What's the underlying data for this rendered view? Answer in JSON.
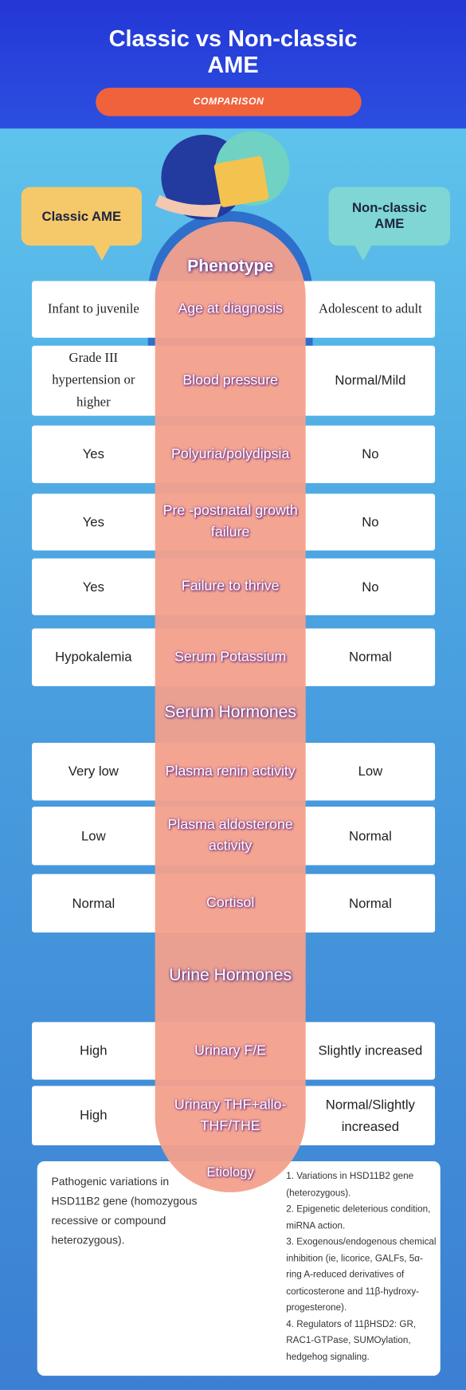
{
  "header": {
    "title": "Classic vs Non-classic AME",
    "badge": "COMPARISON"
  },
  "columns": {
    "classic": "Classic AME",
    "non_classic": "Non-classic AME"
  },
  "sections": [
    {
      "title": "Phenotype",
      "rows": [
        {
          "classic": "Infant to juvenile",
          "feature": "Age at diagnosis",
          "non_classic": "Adolescent to adult"
        },
        {
          "classic": "Grade III hypertension or higher",
          "feature": "Blood pressure",
          "non_classic": "Normal/Mild"
        },
        {
          "classic": "Yes",
          "feature": "Polyuria/polydipsia",
          "non_classic": "No"
        },
        {
          "classic": "Yes",
          "feature": "Pre -postnatal growth failure",
          "non_classic": "No"
        },
        {
          "classic": "Yes",
          "feature": "Failure to thrive",
          "non_classic": "No"
        },
        {
          "classic": "Hypokalemia",
          "feature": "Serum Potassium",
          "non_classic": "Normal"
        }
      ]
    },
    {
      "title": "Serum Hormones",
      "rows": [
        {
          "classic": "Very low",
          "feature": "Plasma renin activity",
          "non_classic": "Low"
        },
        {
          "classic": "Low",
          "feature": "Plasma aldosterone activity",
          "non_classic": "Normal"
        },
        {
          "classic": "Normal",
          "feature": "Cortisol",
          "non_classic": "Normal"
        }
      ]
    },
    {
      "title": "Urine Hormones",
      "rows": [
        {
          "classic": "High",
          "feature": "Urinary F/E",
          "non_classic": "Slightly increased"
        },
        {
          "classic": "High",
          "feature": "Urinary THF+allo-THF/THE",
          "non_classic": "Normal/Slightly increased"
        }
      ]
    }
  ],
  "etiology": {
    "title": "Etiology",
    "classic": "Pathogenic variations in HSD11B2 gene (homozygous recessive or compound heterozygous).",
    "non_classic": [
      "1. Variations in HSD11B2 gene (heterozygous).",
      "2. Epigenetic deleterious condition, miRNA action.",
      "3. Exogenous/endogenous chemical inhibition (ie, licorice, GALFs, 5α-ring A-reduced derivatives of corticosterone and 11β-hydroxy-progesterone).",
      "4. Regulators of 11βHSD2: GR, RAC1-GTPase, SUMOylation, hedgehog signaling."
    ]
  }
}
